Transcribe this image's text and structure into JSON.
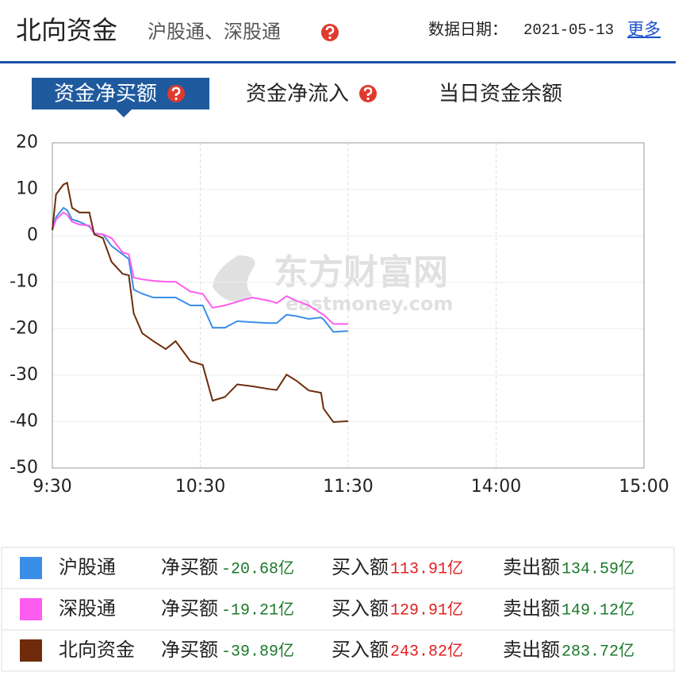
{
  "header": {
    "title": "北向资金",
    "subtitle": "沪股通、深股通",
    "date_label": "数据日期：",
    "date": "2021-05-13",
    "more": "更多"
  },
  "tabs": [
    "资金净买额",
    "资金净流入",
    "当日资金余额"
  ],
  "chart_data": {
    "type": "line",
    "watermark": "东方财富网",
    "watermark_sub": "eastmoney.com",
    "x": [
      0,
      1.5,
      4.5,
      6,
      8,
      11,
      15,
      17,
      20.5,
      24,
      28.5,
      31,
      33,
      36.5,
      41,
      46,
      50,
      56,
      61,
      65,
      70,
      75,
      81,
      88,
      91,
      95,
      99,
      104,
      109,
      110,
      114,
      120
    ],
    "xlim": [
      0,
      240
    ],
    "xticks": [
      {
        "value": 0,
        "label": "9:30"
      },
      {
        "value": 60,
        "label": "10:30"
      },
      {
        "value": 120,
        "label": "11:30"
      },
      {
        "value": 180,
        "label": "14:00"
      },
      {
        "value": 240,
        "label": "15:00"
      }
    ],
    "ylim": [
      -50,
      20
    ],
    "yticks": [
      -50,
      -40,
      -30,
      -20,
      -10,
      0,
      10,
      20
    ],
    "grid": true,
    "series": [
      {
        "name": "沪股通",
        "color": "#3a8ee6",
        "values": [
          1.2,
          4,
          6,
          5.5,
          3.5,
          3,
          2,
          0.5,
          0.3,
          -2.2,
          -4,
          -5,
          -11.6,
          -12.5,
          -13.3,
          -13.3,
          -13.3,
          -15,
          -15,
          -19.8,
          -19.8,
          -18.4,
          -18.6,
          -18.8,
          -18.8,
          -17,
          -17.3,
          -17.9,
          -17.6,
          -18,
          -20.7,
          -20.5
        ]
      },
      {
        "name": "深股通",
        "color": "#ff5cf0",
        "values": [
          1.2,
          3.5,
          5,
          4.5,
          3,
          2.4,
          2.2,
          0.5,
          0.3,
          -0.5,
          -3.6,
          -4,
          -9,
          -9.4,
          -9.7,
          -9.9,
          -9.9,
          -12,
          -12.5,
          -15.5,
          -15,
          -14.2,
          -13.3,
          -14,
          -14.5,
          -13,
          -14,
          -15,
          -16.7,
          -17,
          -19,
          -19
        ]
      },
      {
        "name": "北向资金",
        "color": "#6e2c0c",
        "values": [
          1.2,
          8.9,
          11,
          11.4,
          6,
          5,
          5,
          0.3,
          -0.5,
          -5.6,
          -8.2,
          -8.5,
          -16.7,
          -21,
          -22.7,
          -24.4,
          -22.7,
          -27,
          -27.8,
          -35.5,
          -34.7,
          -32,
          -32.4,
          -33,
          -33.2,
          -29.9,
          -31.2,
          -33.3,
          -33.8,
          -37.2,
          -40.1,
          -39.9
        ]
      }
    ]
  },
  "summary_labels": {
    "net": "净买额",
    "buy": "买入额",
    "sell": "卖出额"
  },
  "summary": [
    {
      "net": "-20.68亿",
      "buy": "113.91亿",
      "sell": "134.59亿"
    },
    {
      "net": "-19.21亿",
      "buy": "129.91亿",
      "sell": "149.12亿"
    },
    {
      "net": "-39.89亿",
      "buy": "243.82亿",
      "sell": "283.72亿"
    }
  ]
}
